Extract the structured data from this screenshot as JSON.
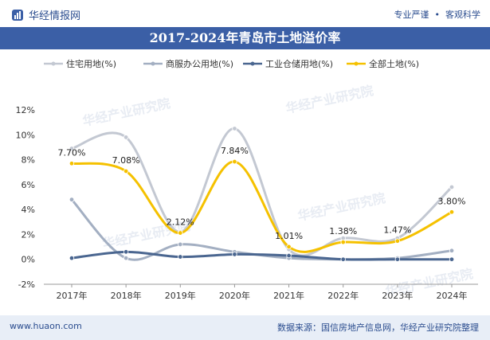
{
  "header": {
    "brand": "华经情报网",
    "slogan_left": "专业严谨",
    "slogan_right": "客观科学"
  },
  "footer": {
    "website": "www.huaon.com",
    "source": "数据来源：国信房地产信息网，华经产业研究院整理"
  },
  "watermark": "华经产业研究院",
  "colors": {
    "header_blue": "#3b5fa6",
    "residential": "#c3c8d2",
    "commercial": "#a3afc2",
    "industrial": "#4a6690",
    "all": "#f5c100"
  },
  "chart_data": {
    "type": "line",
    "title": "2017-2024年青岛市土地溢价率",
    "categories": [
      "2017年",
      "2018年",
      "2019年",
      "2020年",
      "2021年",
      "2022年",
      "2023年",
      "2024年"
    ],
    "yticks": [
      "12%",
      "10%",
      "8%",
      "6%",
      "4%",
      "2%",
      "0%",
      "-2%"
    ],
    "ylim": [
      -2,
      12
    ],
    "legend_position": "top",
    "series": [
      {
        "name": "住宅用地(%)",
        "values": [
          8.9,
          9.8,
          2.2,
          10.5,
          0.8,
          1.7,
          1.7,
          5.8
        ],
        "labels": []
      },
      {
        "name": "商服办公用地(%)",
        "values": [
          4.8,
          0.1,
          1.2,
          0.6,
          0.1,
          0.0,
          0.1,
          0.7
        ],
        "labels": []
      },
      {
        "name": "工业仓储用地(%)",
        "values": [
          0.1,
          0.6,
          0.2,
          0.4,
          0.3,
          0.0,
          0.0,
          0.0
        ],
        "labels": []
      },
      {
        "name": "全部土地(%)",
        "values": [
          7.7,
          7.08,
          2.12,
          7.84,
          1.01,
          1.38,
          1.47,
          3.8
        ],
        "labels": [
          "7.70%",
          "7.08%",
          "2.12%",
          "7.84%",
          "1.01%",
          "1.38%",
          "1.47%",
          "3.80%"
        ]
      }
    ]
  }
}
